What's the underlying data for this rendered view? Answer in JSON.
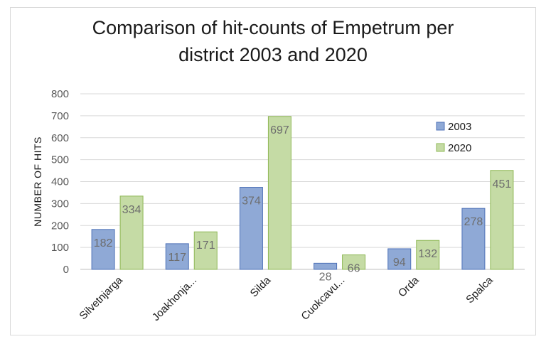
{
  "chart_data": {
    "type": "bar",
    "title": "Comparison of hit-counts of Empetrum per\ndistrict 2003 and 2020",
    "xlabel": "",
    "ylabel": "NUMBER OF HITS",
    "ylim": [
      0,
      800
    ],
    "yticks": [
      0,
      100,
      200,
      300,
      400,
      500,
      600,
      700,
      800
    ],
    "categories": [
      "Silvetnjarga",
      "Joakhonja...",
      "Silda",
      "Cuokcavu...",
      "Orda",
      "Spalca"
    ],
    "series": [
      {
        "name": "2003",
        "values": [
          182,
          117,
          374,
          28,
          94,
          278
        ],
        "color": "#8fa9d6"
      },
      {
        "name": "2020",
        "values": [
          334,
          171,
          697,
          66,
          132,
          451
        ],
        "color": "#c5dba5"
      }
    ],
    "grid": true,
    "legend_position": "right",
    "data_labels": true
  }
}
